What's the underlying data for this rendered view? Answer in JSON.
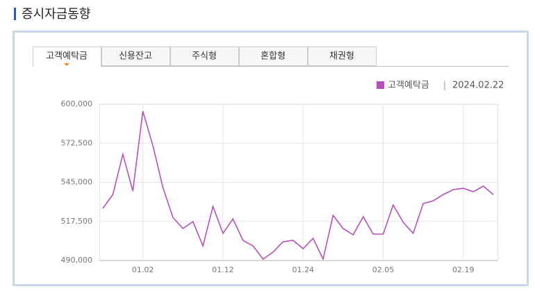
{
  "page_title": "증시자금동향",
  "tabs": [
    "고객예탁금",
    "신용잔고",
    "주식형",
    "혼합형",
    "채권형"
  ],
  "chart_data": {
    "type": "line",
    "date": "2024.02.22",
    "legend_separator": "|",
    "categories": [
      null,
      null,
      null,
      null,
      "01.02",
      null,
      null,
      null,
      null,
      null,
      null,
      null,
      "01.12",
      null,
      null,
      null,
      null,
      null,
      null,
      null,
      "01.24",
      null,
      null,
      null,
      null,
      null,
      null,
      null,
      "02.05",
      null,
      null,
      null,
      null,
      null,
      null,
      null,
      "02.19",
      null,
      null,
      null
    ],
    "series": [
      {
        "name": "고객예탁금",
        "color": "#b84fb8",
        "values": [
          526700,
          536400,
          564800,
          538900,
          595100,
          570700,
          541300,
          520300,
          512500,
          517400,
          500200,
          528100,
          509100,
          519300,
          504200,
          500200,
          491000,
          495900,
          503200,
          504200,
          498300,
          505600,
          491000,
          521800,
          512500,
          508100,
          520800,
          508600,
          508600,
          529100,
          516900,
          509100,
          530100,
          532000,
          536400,
          539900,
          540800,
          538400,
          542300,
          536400
        ]
      }
    ],
    "ylim": [
      490000,
      600000
    ],
    "yticks": [
      {
        "value": 490000,
        "label": "490,000"
      },
      {
        "value": 517500,
        "label": "517,500"
      },
      {
        "value": 545000,
        "label": "545,000"
      },
      {
        "value": 572500,
        "label": "572,500"
      },
      {
        "value": 600000,
        "label": "600,000"
      }
    ],
    "grid": true
  }
}
